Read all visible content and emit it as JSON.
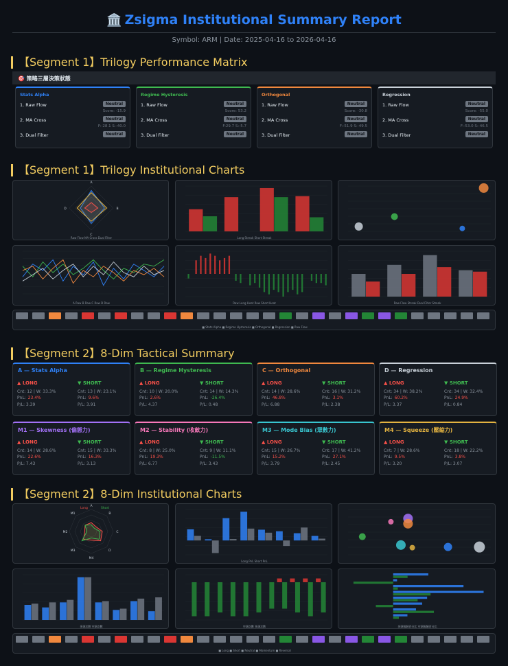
{
  "header": {
    "icon": "🏛️",
    "title": "Zsigma Institutional Summary Report",
    "subtitle": "Symbol: ARM | Date: 2025-04-16 to 2026-04-16"
  },
  "sections": {
    "s1": "【Segment 1】Trilogy Performance Matrix",
    "s2": "【Segment 1】Trilogy Institutional Charts",
    "s3": "【Segment 2】8-Dim Tactical Summary",
    "s4": "【Segment 2】8-Dim Institutional Charts"
  },
  "matrix": {
    "bar": "🎯 策略三層決策狀態",
    "cards": [
      {
        "name": "Stats Alpha",
        "color": "#2f81f7",
        "r1": "1. Raw Flow",
        "b1": "Neutral",
        "s1": "Score: -15.9",
        "r2": "2. MA Cross",
        "b2": "Neutral",
        "s2": "F:-28.1 S:-40.0",
        "r3": "3. Dual Filter",
        "b3": "Neutral"
      },
      {
        "name": "Regime Hysteresis",
        "color": "#3fb950",
        "r1": "1. Raw Flow",
        "b1": "Neutral",
        "s1": "Score: 53.2",
        "r2": "2. MA Cross",
        "b2": "Neutral",
        "s2": "F:29.7 S:-5.7",
        "r3": "3. Dual Filter",
        "b3": "Neutral"
      },
      {
        "name": "Orthogonal",
        "color": "#f0883e",
        "r1": "1. Raw Flow",
        "b1": "Neutral",
        "s1": "Score: -30.8",
        "r2": "2. MA Cross",
        "b2": "Neutral",
        "s2": "F:-51.9 S:-49.5",
        "r3": "3. Dual Filter",
        "b3": "Neutral"
      },
      {
        "name": "Regression",
        "color": "#c9d1d9",
        "r1": "1. Raw Flow",
        "b1": "Neutral",
        "s1": "Score: -55.0",
        "r2": "2. MA Cross",
        "b2": "Neutral",
        "s2": "F:-53.0 S:-46.5",
        "r3": "3. Dual Filter",
        "b3": "Neutral"
      }
    ]
  },
  "tactical": [
    {
      "name": "A — Stats Alpha",
      "color": "#2f81f7",
      "long": {
        "label": "▲ LONG",
        "cnt": "Cnt: 12 | W: 33.3%",
        "pnl_label": "PnL:",
        "pnl": "23.4%",
        "pl": "P/L: 3.39"
      },
      "short": {
        "label": "▼ SHORT",
        "cnt": "Cnt: 13 | W: 23.1%",
        "pnl_label": "PnL:",
        "pnl": "9.6%",
        "pl": "P/L: 3.91"
      }
    },
    {
      "name": "B — Regime Hysteresis",
      "color": "#3fb950",
      "long": {
        "label": "▲ LONG",
        "cnt": "Cnt: 10 | W: 20.0%",
        "pnl_label": "PnL:",
        "pnl": "2.6%",
        "pl": "P/L: 4.37"
      },
      "short": {
        "label": "▼ SHORT",
        "cnt": "Cnt: 14 | W: 14.3%",
        "pnl_label": "PnL:",
        "pnl": "-26.4%",
        "pl": "P/L: 0.48"
      }
    },
    {
      "name": "C — Orthogonal",
      "color": "#f0883e",
      "long": {
        "label": "▲ LONG",
        "cnt": "Cnt: 14 | W: 28.6%",
        "pnl_label": "PnL:",
        "pnl": "46.8%",
        "pl": "P/L: 6.88"
      },
      "short": {
        "label": "▼ SHORT",
        "cnt": "Cnt: 16 | W: 31.2%",
        "pnl_label": "PnL:",
        "pnl": "3.1%",
        "pl": "P/L: 2.38"
      }
    },
    {
      "name": "D — Regression",
      "color": "#c9d1d9",
      "long": {
        "label": "▲ LONG",
        "cnt": "Cnt: 34 | W: 38.2%",
        "pnl_label": "PnL:",
        "pnl": "60.2%",
        "pl": "P/L: 3.37"
      },
      "short": {
        "label": "▼ SHORT",
        "cnt": "Cnt: 34 | W: 32.4%",
        "pnl_label": "PnL:",
        "pnl": "24.9%",
        "pl": "P/L: 0.84"
      }
    },
    {
      "name": "M1 — Skewness (偏態力)",
      "color": "#a371f7",
      "long": {
        "label": "▲ LONG",
        "cnt": "Cnt: 14 | W: 28.6%",
        "pnl_label": "PnL:",
        "pnl": "22.6%",
        "pl": "P/L: 7.43"
      },
      "short": {
        "label": "▼ SHORT",
        "cnt": "Cnt: 15 | W: 33.3%",
        "pnl_label": "PnL:",
        "pnl": "16.3%",
        "pl": "P/L: 3.13"
      }
    },
    {
      "name": "M2 — Stability (收斂力)",
      "color": "#f778ba",
      "long": {
        "label": "▲ LONG",
        "cnt": "Cnt: 8 | W: 25.0%",
        "pnl_label": "PnL:",
        "pnl": "19.3%",
        "pl": "P/L: 6.77"
      },
      "short": {
        "label": "▼ SHORT",
        "cnt": "Cnt: 9 | W: 11.1%",
        "pnl_label": "PnL:",
        "pnl": "-11.5%",
        "pl": "P/L: 3.43"
      }
    },
    {
      "name": "M3 — Mode Bias (眾數力)",
      "color": "#39c5cf",
      "long": {
        "label": "▲ LONG",
        "cnt": "Cnt: 15 | W: 26.7%",
        "pnl_label": "PnL:",
        "pnl": "15.2%",
        "pl": "P/L: 3.79"
      },
      "short": {
        "label": "▼ SHORT",
        "cnt": "Cnt: 17 | W: 41.2%",
        "pnl_label": "PnL:",
        "pnl": "27.1%",
        "pl": "P/L: 2.45"
      }
    },
    {
      "name": "M4 — Squeeze (壓縮力)",
      "color": "#e3b341",
      "long": {
        "label": "▲ LONG",
        "cnt": "Cnt: 7 | W: 28.6%",
        "pnl_label": "PnL:",
        "pnl": "9.5%",
        "pl": "P/L: 3.20"
      },
      "short": {
        "label": "▼ SHORT",
        "cnt": "Cnt: 18 | W: 22.2%",
        "pnl_label": "PnL:",
        "pnl": "3.8%",
        "pl": "P/L: 3.07"
      }
    }
  ],
  "chart_data": [
    {
      "type": "radar",
      "id": "t-radar",
      "categories": [
        "A",
        "B",
        "C",
        "D"
      ],
      "series": [
        {
          "name": "Raw Flow",
          "color": "#2f81f7",
          "values": [
            1.6,
            1.2,
            1.4,
            1.0
          ]
        },
        {
          "name": "MA Cross",
          "color": "#e3b341",
          "values": [
            1.4,
            1.4,
            1.2,
            1.3
          ]
        },
        {
          "name": "Dual Filter",
          "color": "#f85149",
          "values": [
            0.5,
            0.6,
            0.4,
            0.6
          ]
        }
      ],
      "ylim": [
        0,
        2
      ]
    },
    {
      "type": "bar",
      "id": "t-bar",
      "categories": [
        "A",
        "B",
        "C",
        "D"
      ],
      "series": [
        {
          "name": "Long Streak",
          "color": "#da3633",
          "values": [
            2.2,
            3.4,
            4.3,
            3.5
          ]
        },
        {
          "name": "Short Streak",
          "color": "#238636",
          "values": [
            1.5,
            0,
            3.4,
            1.4
          ]
        }
      ],
      "ylim": [
        0,
        4.5
      ]
    },
    {
      "type": "scatter",
      "id": "t-scatter",
      "points": [
        {
          "x": 0.3,
          "y": 0.5,
          "r": 6,
          "color": "#c9d1d9"
        },
        {
          "x": 1.3,
          "y": 1.5,
          "r": 5,
          "color": "#3fb950"
        },
        {
          "x": 3.2,
          "y": 0.3,
          "r": 4,
          "color": "#2f81f7"
        },
        {
          "x": 3.8,
          "y": 4.4,
          "r": 7,
          "color": "#f0883e"
        }
      ],
      "xlim": [
        0,
        4
      ],
      "ylim": [
        0,
        4.6
      ]
    },
    {
      "type": "line",
      "id": "t-line",
      "series": [
        {
          "name": "A Raw",
          "color": "#2f81f7",
          "values": [
            -20,
            40,
            10,
            60,
            -40,
            30,
            -10,
            50,
            -60,
            20,
            -30,
            40,
            10,
            -20,
            30
          ]
        },
        {
          "name": "B Raw",
          "color": "#3fb950",
          "values": [
            30,
            -20,
            50,
            0,
            40,
            -10,
            20,
            60,
            10,
            -30,
            20,
            0,
            40,
            30,
            60
          ]
        },
        {
          "name": "C Raw",
          "color": "#f0883e",
          "values": [
            10,
            30,
            -30,
            20,
            60,
            -50,
            10,
            -20,
            30,
            0,
            -40,
            10,
            -10,
            20,
            -20
          ]
        },
        {
          "name": "D Raw",
          "color": "#c9d1d9",
          "values": [
            -40,
            -10,
            20,
            -30,
            10,
            40,
            -20,
            30,
            -10,
            50,
            0,
            -20,
            30,
            -10,
            10
          ]
        }
      ],
      "categories": [
        "W1",
        "W2",
        "W3",
        "W4",
        "W5",
        "W6",
        "W7",
        "W8",
        "W9",
        "W10",
        "W11",
        "W12",
        "W13",
        "W14",
        "W15"
      ],
      "ylim": [
        -100,
        100
      ]
    },
    {
      "type": "bar",
      "id": "t-div",
      "categories": [
        "1",
        "2",
        "3",
        "4",
        "5",
        "6",
        "7",
        "8",
        "9",
        "10",
        "11",
        "12",
        "13",
        "14",
        "15",
        "16",
        "17",
        "18",
        "19",
        "20",
        "21",
        "22",
        "23",
        "24",
        "25",
        "26",
        "27",
        "28",
        "29",
        "30"
      ],
      "series": [
        {
          "name": "Raw Long Heat",
          "color": "#da3633",
          "values": [
            0,
            0,
            6,
            8,
            7,
            9,
            8,
            6,
            7,
            8,
            0,
            0,
            0,
            0,
            0,
            0,
            0,
            0,
            0,
            0,
            0,
            0,
            0,
            0,
            0,
            0,
            0,
            0,
            0,
            0
          ]
        },
        {
          "name": "Raw Short Heat",
          "color": "#238636",
          "values": [
            -2,
            0,
            0,
            0,
            0,
            0,
            0,
            0,
            0,
            0,
            -3,
            -4,
            0,
            -5,
            -4,
            -6,
            -8,
            -9,
            -7,
            -8,
            -10,
            -8,
            -7,
            -9,
            -8,
            0,
            -3,
            -4,
            -4,
            -5
          ]
        }
      ],
      "ylim": [
        -10,
        10
      ]
    },
    {
      "type": "bar",
      "id": "t-grp",
      "categories": [
        "A",
        "B",
        "C",
        "D"
      ],
      "series": [
        {
          "name": "Raw Flow Streak",
          "color": "#6e7681",
          "values": [
            3.0,
            4.2,
            5.5,
            3.5
          ]
        },
        {
          "name": "Dual Filter Streak",
          "color": "#da3633",
          "values": [
            2.0,
            3.0,
            3.9,
            3.3
          ]
        }
      ],
      "ylim": [
        0,
        6
      ]
    },
    {
      "type": "radar",
      "id": "e-radar",
      "categories": [
        "A",
        "B",
        "C",
        "D",
        "M4",
        "M3",
        "M2",
        "M1"
      ],
      "series": [
        {
          "name": "Long",
          "color": "#f85149",
          "values": [
            0.4,
            0.3,
            0.5,
            0.6,
            0.4,
            0.5,
            0.3,
            0.4
          ]
        },
        {
          "name": "Short",
          "color": "#3fb950",
          "values": [
            0.3,
            0.2,
            0.4,
            0.5,
            0.3,
            0.6,
            0.2,
            0.4
          ]
        }
      ],
      "ylim": [
        0,
        1
      ]
    },
    {
      "type": "bar",
      "id": "e-bar",
      "categories": [
        "A",
        "B",
        "C",
        "D",
        "M1",
        "M2",
        "M3",
        "M4"
      ],
      "series": [
        {
          "name": "Long PnL",
          "color": "#2f81f7",
          "values": [
            23.4,
            2.6,
            46.8,
            60.2,
            22.6,
            19.3,
            15.2,
            9.5
          ]
        },
        {
          "name": "Short PnL",
          "color": "#6e7681",
          "values": [
            9.6,
            -26.4,
            3.1,
            24.9,
            16.3,
            -11.5,
            27.1,
            3.8
          ]
        }
      ],
      "ylim": [
        -30,
        65
      ]
    },
    {
      "type": "scatter",
      "id": "e-scatter",
      "points": [
        {
          "x": 0.1,
          "y": 0.28,
          "r": 5,
          "color": "#3fb950"
        },
        {
          "x": 0.3,
          "y": 0.51,
          "r": 4,
          "color": "#f778ba"
        },
        {
          "x": 0.42,
          "y": 0.56,
          "r": 7,
          "color": "#a371f7"
        },
        {
          "x": 0.42,
          "y": 0.48,
          "r": 7,
          "color": "#f0883e"
        },
        {
          "x": 0.37,
          "y": 0.15,
          "r": 7,
          "color": "#39c5cf"
        },
        {
          "x": 0.45,
          "y": 0.11,
          "r": 4,
          "color": "#e3b341"
        },
        {
          "x": 0.7,
          "y": 0.12,
          "r": 6,
          "color": "#2f81f7"
        },
        {
          "x": 0.92,
          "y": 0.12,
          "r": 8,
          "color": "#c9d1d9"
        }
      ],
      "xlim": [
        0,
        1
      ],
      "ylim": [
        0,
        0.7
      ]
    },
    {
      "type": "bar",
      "id": "e-cnt",
      "categories": [
        "A",
        "B",
        "C",
        "D",
        "M1",
        "M2",
        "M3",
        "M4"
      ],
      "series": [
        {
          "name": "多頭次數",
          "color": "#2f81f7",
          "values": [
            12,
            10,
            14,
            34,
            14,
            8,
            15,
            7
          ]
        },
        {
          "name": "空頭次數",
          "color": "#6e7681",
          "values": [
            13,
            14,
            16,
            34,
            15,
            9,
            17,
            18
          ]
        }
      ],
      "ylim": [
        0,
        36
      ]
    },
    {
      "type": "bar",
      "id": "e-wf",
      "categories": [
        "1",
        "2",
        "3",
        "4",
        "5",
        "6",
        "7",
        "8",
        "9",
        "10",
        "11"
      ],
      "series": [
        {
          "name": "Positive",
          "color": "#da3633",
          "values": [
            0,
            0,
            0,
            0,
            0,
            0,
            0,
            1,
            1,
            1,
            1
          ]
        },
        {
          "name": "Negative",
          "color": "#238636",
          "values": [
            -9,
            -9,
            -8,
            -9,
            -9,
            -8,
            -7,
            -7,
            -8,
            -9,
            -8
          ]
        }
      ],
      "ylim": [
        -10,
        2
      ]
    },
    {
      "type": "bar",
      "id": "e-hbar",
      "categories": [
        "A",
        "B",
        "C",
        "D",
        "M1",
        "M2",
        "M3",
        "M4"
      ],
      "series": [
        {
          "name": "多頭報酬百分比",
          "color": "#2f81f7",
          "values": [
            23.4,
            2.6,
            46.8,
            60.2,
            22.6,
            19.3,
            15.2,
            9.5
          ]
        },
        {
          "name": "空頭報酬百分比",
          "color": "#238636",
          "values": [
            9.6,
            -26.4,
            3.1,
            24.9,
            16.3,
            -11.5,
            27.1,
            3.8
          ]
        }
      ],
      "xlim": [
        -30,
        65
      ]
    }
  ],
  "strips": {
    "s1": {
      "legend": "■ Stats Alpha ■ Regime Hysteresis ■ Orthogonal ■ Regression ■ Raw Flow"
    },
    "s2": {
      "legend": "■ Long ■ Short ■ Neutral ■ Momentum ■ Reversal"
    }
  },
  "legends": {
    "t_radar": "Raw Flow  MA Cross  Dual Filter",
    "t_bar": "Long Streak  Short Streak",
    "t_line": "A Raw  B Raw  C Raw  D Raw",
    "t_div": "Raw Long Heat  Raw Short Heat",
    "t_grp": "Raw Flow Streak  Dual Filter Streak",
    "e_radar_long": "Long",
    "e_radar_short": "Short",
    "e_bar": "Long PnL  Short PnL",
    "e_cnt": "多頭次數  空頭次數",
    "e_wf": "空頭次數  多頭次數",
    "e_hbar": "多頭報酬百分比  空頭報酬百分比"
  }
}
